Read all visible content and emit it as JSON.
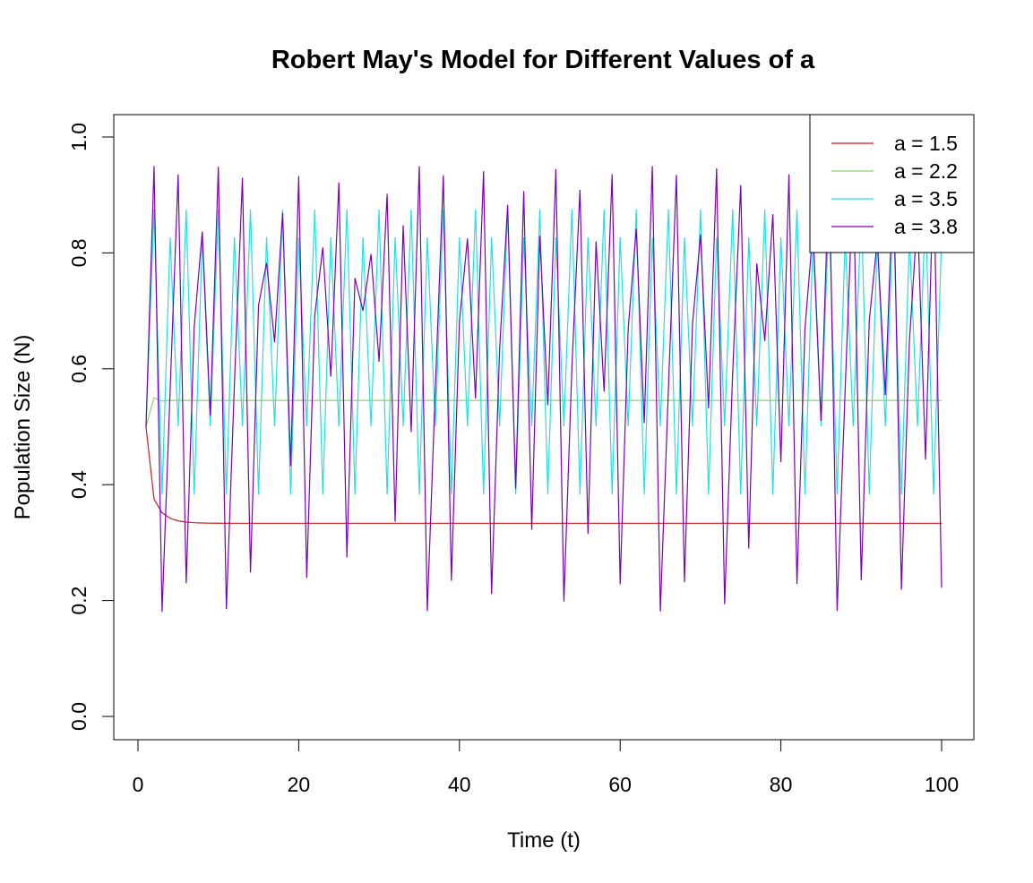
{
  "chart_data": {
    "type": "line",
    "title": "Robert May's Model for Different Values of a",
    "xlabel": "Time (t)",
    "ylabel": "Population Size (N)",
    "xlim": [
      0,
      100
    ],
    "ylim": [
      0,
      1
    ],
    "x_ticks": [
      0,
      20,
      40,
      60,
      80,
      100
    ],
    "y_ticks": [
      0.0,
      0.2,
      0.4,
      0.6,
      0.8,
      1.0
    ],
    "x_tick_labels": [
      "0",
      "20",
      "40",
      "60",
      "80",
      "100"
    ],
    "y_tick_labels": [
      "0.0",
      "0.2",
      "0.4",
      "0.6",
      "0.8",
      "1.0"
    ],
    "grid": false,
    "legend_position": "top-right",
    "model": "N[t+1] = a * N[t] * (1 - N[t])",
    "x": [
      1,
      100
    ],
    "initial_value": 0.5,
    "series": [
      {
        "name": "a = 1.5",
        "a": 1.5,
        "color": "#cc1a1a"
      },
      {
        "name": "a = 2.2",
        "a": 2.2,
        "color": "#8fd16a"
      },
      {
        "name": "a = 3.5",
        "a": 3.5,
        "color": "#22e0e0"
      },
      {
        "name": "a = 3.8",
        "a": 3.8,
        "color": "#7a00b8"
      }
    ]
  }
}
